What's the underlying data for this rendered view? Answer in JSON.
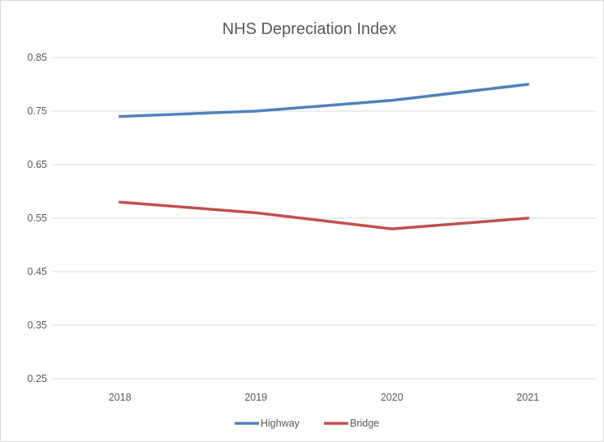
{
  "chart_data": {
    "type": "line",
    "title": "NHS Depreciation Index",
    "categories": [
      "2018",
      "2019",
      "2020",
      "2021"
    ],
    "series": [
      {
        "name": "Highway",
        "values": [
          0.74,
          0.75,
          0.77,
          0.8
        ],
        "color": "#4f81bd"
      },
      {
        "name": "Bridge",
        "values": [
          0.58,
          0.56,
          0.53,
          0.55
        ],
        "color": "#c0504d"
      }
    ],
    "ylim": [
      0.25,
      0.85
    ],
    "yticks": [
      "0.85",
      "0.75",
      "0.65",
      "0.55",
      "0.45",
      "0.35",
      "0.25"
    ],
    "xlabel": "",
    "ylabel": "",
    "grid": true,
    "legend": "bottom"
  }
}
